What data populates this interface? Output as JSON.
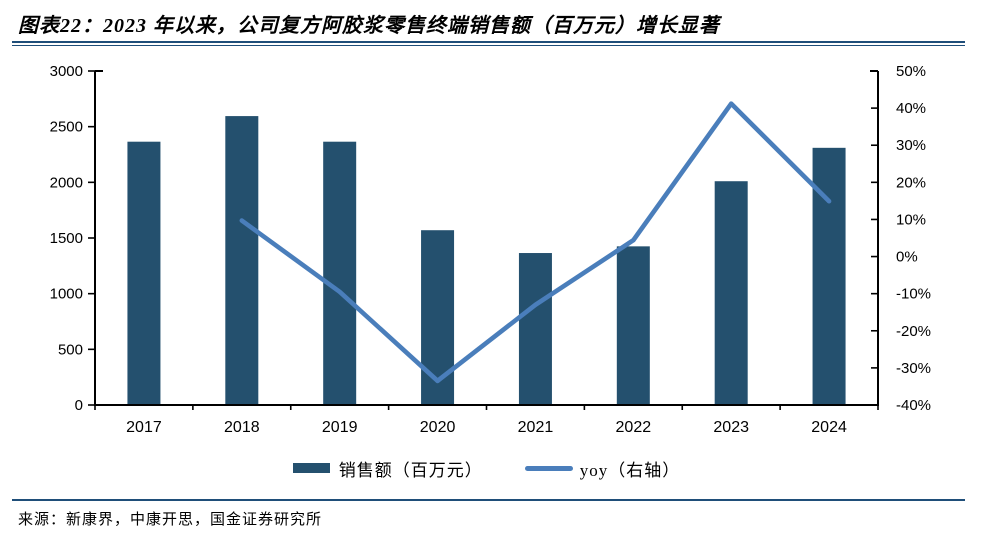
{
  "figure": {
    "title": "图表22：2023 年以来，公司复方阿胶浆零售终端销售额（百万元）增长显著",
    "source": "来源：新康界，中康开思，国金证券研究所"
  },
  "colors": {
    "bar": "#24506E",
    "line": "#4A7EBB",
    "rule": "#1F4E79",
    "axis": "#000000",
    "tick_text": "#000000"
  },
  "chart_data": {
    "type": "bar",
    "subtype": "combo-bar-line",
    "title": "公司复方阿胶浆零售终端销售额（百万元）及yoy",
    "categories": [
      "2017",
      "2018",
      "2019",
      "2020",
      "2021",
      "2022",
      "2023",
      "2024"
    ],
    "series": [
      {
        "name": "销售额（百万元）",
        "type": "bar",
        "axis": "left",
        "values": [
          2365,
          2595,
          2365,
          1570,
          1365,
          1425,
          2010,
          2310
        ]
      },
      {
        "name": "yoy（右轴）",
        "type": "line",
        "axis": "right",
        "unit": "%",
        "values": [
          null,
          9.7,
          -9.5,
          -33.5,
          -13.0,
          4.4,
          41.2,
          14.9
        ]
      }
    ],
    "left_axis": {
      "min": 0,
      "max": 3000,
      "step": 500,
      "tick_labels": [
        "0",
        "500",
        "1000",
        "1500",
        "2000",
        "2500",
        "3000"
      ]
    },
    "right_axis": {
      "min": -40,
      "max": 50,
      "step": 10,
      "tick_labels": [
        "-40%",
        "-30%",
        "-20%",
        "-10%",
        "0%",
        "10%",
        "20%",
        "30%",
        "40%",
        "50%"
      ]
    },
    "grid": false,
    "legend_position": "bottom-center",
    "legend": [
      {
        "label": "销售额（百万元）",
        "swatch": "bar"
      },
      {
        "label": "yoy（右轴）",
        "swatch": "line"
      }
    ]
  }
}
